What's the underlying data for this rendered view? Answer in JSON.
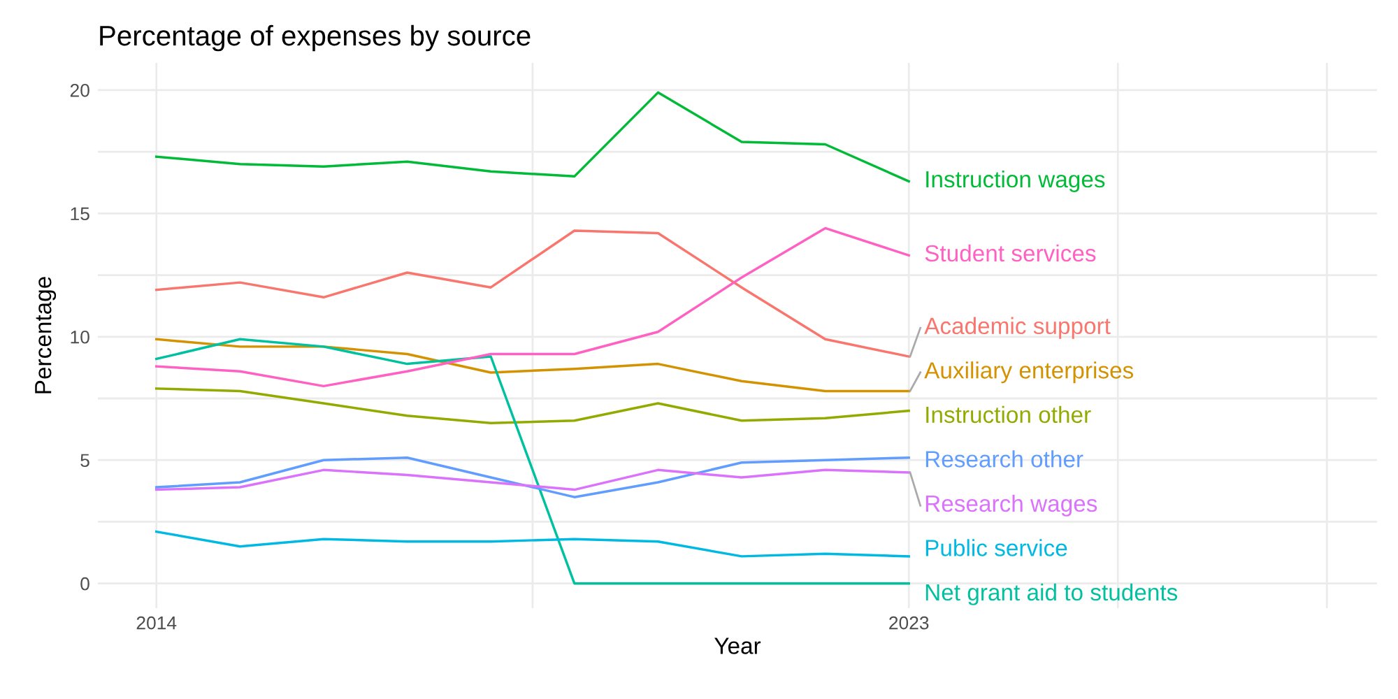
{
  "chart_data": {
    "type": "line",
    "title": "Percentage of expenses by source",
    "xlabel": "Year",
    "ylabel": "Percentage",
    "x": [
      2014,
      2015,
      2016,
      2017,
      2018,
      2019,
      2020,
      2021,
      2022,
      2023
    ],
    "xlim": [
      2013.3,
      2028.6
    ],
    "xticks": [
      2014,
      {
        "value": 2018.5,
        "label": null
      },
      2023,
      {
        "value": 2025.5,
        "label": null
      },
      {
        "value": 2028,
        "label": null
      }
    ],
    "ylim": [
      -1.0,
      21.1
    ],
    "yticks": [
      0,
      {
        "value": 2.5,
        "label": null
      },
      5,
      {
        "value": 7.5,
        "label": null
      },
      10,
      {
        "value": 12.5,
        "label": null
      },
      15,
      {
        "value": 17.5,
        "label": null
      },
      20
    ],
    "grid": true,
    "marker": "none",
    "line_style": "solid",
    "series": [
      {
        "name": "Academic support",
        "color": "#F8766D",
        "values": [
          11.9,
          12.2,
          11.6,
          12.6,
          12.0,
          14.3,
          14.2,
          12.0,
          9.9,
          9.2
        ]
      },
      {
        "name": "Auxiliary enterprises",
        "color": "#D39200",
        "values": [
          9.9,
          9.6,
          9.6,
          9.3,
          8.55,
          8.7,
          8.9,
          8.2,
          7.8,
          7.8
        ]
      },
      {
        "name": "Instruction other",
        "color": "#93AA00",
        "values": [
          7.9,
          7.8,
          7.3,
          6.8,
          6.5,
          6.6,
          7.3,
          6.6,
          6.7,
          7.0
        ]
      },
      {
        "name": "Instruction wages",
        "color": "#00BA38",
        "values": [
          17.3,
          17.0,
          16.9,
          17.1,
          16.7,
          16.5,
          19.9,
          17.9,
          17.8,
          16.3
        ]
      },
      {
        "name": "Net grant aid to students",
        "color": "#00C19F",
        "values": [
          9.1,
          9.9,
          9.6,
          8.9,
          9.2,
          0,
          0,
          0,
          0,
          0
        ]
      },
      {
        "name": "Public service",
        "color": "#00B9E3",
        "values": [
          2.1,
          1.5,
          1.8,
          1.7,
          1.7,
          1.8,
          1.7,
          1.1,
          1.2,
          1.1
        ]
      },
      {
        "name": "Research other",
        "color": "#619CFF",
        "values": [
          3.9,
          4.1,
          5.0,
          5.1,
          4.3,
          3.5,
          4.1,
          4.9,
          5.0,
          5.1
        ]
      },
      {
        "name": "Research wages",
        "color": "#DB72FB",
        "values": [
          3.8,
          3.9,
          4.6,
          4.4,
          4.1,
          3.8,
          4.6,
          4.3,
          4.6,
          4.5
        ]
      },
      {
        "name": "Student services",
        "color": "#FF61C3",
        "values": [
          8.8,
          8.6,
          8.0,
          8.6,
          9.3,
          9.3,
          10.2,
          12.4,
          14.4,
          13.3
        ]
      }
    ]
  }
}
